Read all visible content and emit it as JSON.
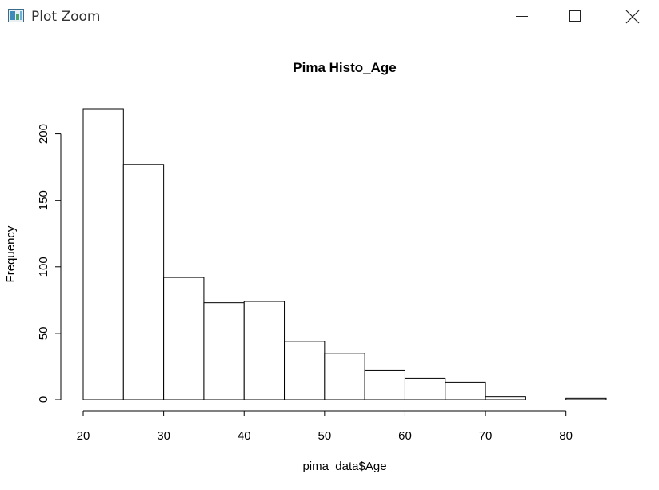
{
  "window": {
    "title": "Plot Zoom",
    "icon": "plot-app-icon",
    "controls": [
      "minimize-icon",
      "maximize-icon",
      "close-icon"
    ]
  },
  "chart_data": {
    "type": "bar",
    "title": "Pima Histo_Age",
    "xlabel": "pima_data$Age",
    "ylabel": "Frequency",
    "bins": [
      [
        20,
        25
      ],
      [
        25,
        30
      ],
      [
        30,
        35
      ],
      [
        35,
        40
      ],
      [
        40,
        45
      ],
      [
        45,
        50
      ],
      [
        50,
        55
      ],
      [
        55,
        60
      ],
      [
        60,
        65
      ],
      [
        65,
        70
      ],
      [
        70,
        75
      ],
      [
        75,
        80
      ],
      [
        80,
        85
      ]
    ],
    "values": [
      219,
      177,
      92,
      73,
      74,
      44,
      35,
      22,
      16,
      13,
      2,
      0,
      1
    ],
    "xticks": [
      20,
      30,
      40,
      50,
      60,
      70,
      80
    ],
    "yticks": [
      0,
      50,
      100,
      150,
      200
    ],
    "xlim": [
      20,
      85
    ],
    "ylim": [
      0,
      219
    ],
    "grid": false,
    "bar_fill": "#ffffff",
    "bar_stroke": "#000000"
  }
}
